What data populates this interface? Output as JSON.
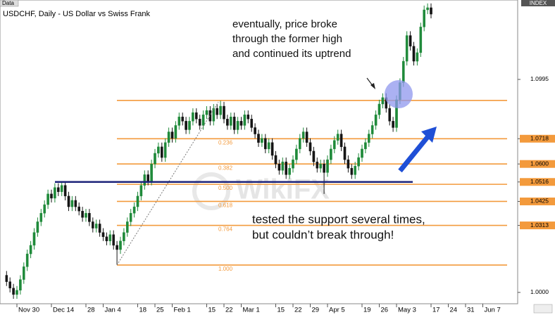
{
  "chart_data": {
    "type": "candlestick",
    "title": "USDCHF, Daily - US Dollar vs Swiss Frank",
    "data_tab": "Data",
    "index_tag": "INDEX",
    "categories": [
      null,
      null,
      null,
      "Nov 30",
      null,
      null,
      null,
      null,
      null,
      null,
      null,
      null,
      null,
      "Dec 14",
      null,
      null,
      null,
      null,
      null,
      null,
      null,
      null,
      null,
      "28",
      null,
      null,
      null,
      null,
      "Jan 4",
      null,
      null,
      null,
      null,
      null,
      null,
      null,
      null,
      null,
      "18",
      null,
      null,
      null,
      null,
      "25",
      null,
      null,
      null,
      null,
      "Feb 1",
      null,
      null,
      null,
      null,
      null,
      null,
      null,
      null,
      null,
      "15",
      null,
      null,
      null,
      null,
      "22",
      null,
      null,
      null,
      null,
      "Mar 1",
      null,
      null,
      null,
      null,
      null,
      null,
      null,
      null,
      null,
      "15",
      null,
      null,
      null,
      null,
      "22",
      null,
      null,
      null,
      null,
      "29",
      null,
      null,
      null,
      null,
      "Apr 5",
      null,
      null,
      null,
      null,
      null,
      null,
      null,
      null,
      null,
      "19",
      null,
      null,
      null,
      null,
      "26",
      null,
      null,
      null,
      null,
      "May 3",
      null,
      null,
      null,
      null,
      null,
      null,
      null,
      null,
      null,
      "17",
      null,
      null,
      null,
      null,
      "24",
      null,
      null,
      null,
      null,
      "31",
      null,
      null,
      null,
      null,
      "Jun 7"
    ],
    "open": [
      1.008,
      1.005,
      1.002,
      0.999,
      1.001,
      1.006,
      1.012,
      1.018,
      1.022,
      1.028,
      1.033,
      1.037,
      1.041,
      1.046,
      1.044,
      1.049,
      1.047,
      1.05,
      1.045,
      1.04,
      1.043,
      1.04,
      1.038,
      1.035,
      1.037,
      1.033,
      1.03,
      1.032,
      1.028,
      1.026,
      1.024,
      1.027,
      1.022,
      1.02,
      1.024,
      1.028,
      1.033,
      1.037,
      1.04,
      1.045,
      1.05,
      1.055,
      1.052,
      1.06,
      1.065,
      1.068,
      1.063,
      1.07,
      1.075,
      1.072,
      1.078,
      1.082,
      1.08,
      1.076,
      1.08,
      1.084,
      1.081,
      1.078,
      1.083,
      1.085,
      1.08,
      1.086,
      1.083,
      1.087,
      1.081,
      1.078,
      1.082,
      1.076,
      1.08,
      1.078,
      1.083,
      1.081,
      1.077,
      1.074,
      1.07,
      1.072,
      1.067,
      1.07,
      1.064,
      1.06,
      1.057,
      1.061,
      1.055,
      1.058,
      1.062,
      1.067,
      1.072,
      1.075,
      1.07,
      1.066,
      1.061,
      1.058,
      1.06,
      1.056,
      1.062,
      1.067,
      1.071,
      1.074,
      1.068,
      1.062,
      1.058,
      1.055,
      1.059,
      1.063,
      1.067,
      1.07,
      1.074,
      1.078,
      1.083,
      1.088,
      1.091,
      1.086,
      1.08,
      1.077,
      1.09,
      1.098,
      1.108,
      1.12,
      1.115,
      1.108,
      1.112,
      1.124,
      1.132,
      1.133,
      null,
      null,
      null,
      null,
      null,
      null,
      null,
      null,
      null,
      null,
      null,
      null,
      null,
      null,
      null
    ],
    "high": [
      1.01,
      1.007,
      1.004,
      1.003,
      1.008,
      1.014,
      1.02,
      1.024,
      1.03,
      1.035,
      1.039,
      1.043,
      1.048,
      1.048,
      1.051,
      1.051,
      1.052,
      1.052,
      1.047,
      1.045,
      1.045,
      1.042,
      1.04,
      1.039,
      1.039,
      1.035,
      1.034,
      1.034,
      1.03,
      1.028,
      1.029,
      1.029,
      1.024,
      1.026,
      1.03,
      1.035,
      1.039,
      1.042,
      1.047,
      1.052,
      1.057,
      1.057,
      1.062,
      1.067,
      1.07,
      1.07,
      1.072,
      1.077,
      1.077,
      1.08,
      1.084,
      1.084,
      1.082,
      1.082,
      1.086,
      1.086,
      1.083,
      1.085,
      1.087,
      1.087,
      1.088,
      1.088,
      1.0895,
      1.089,
      1.083,
      1.084,
      1.084,
      1.082,
      1.082,
      1.085,
      1.085,
      1.083,
      1.079,
      1.076,
      1.074,
      1.074,
      1.072,
      1.072,
      1.066,
      1.062,
      1.063,
      1.063,
      1.06,
      1.064,
      1.069,
      1.074,
      1.077,
      1.077,
      1.072,
      1.068,
      1.063,
      1.062,
      1.062,
      1.064,
      1.069,
      1.073,
      1.076,
      1.076,
      1.07,
      1.064,
      1.06,
      1.061,
      1.065,
      1.069,
      1.072,
      1.076,
      1.08,
      1.085,
      1.09,
      1.093,
      1.093,
      1.088,
      1.082,
      1.092,
      1.1,
      1.11,
      1.122,
      1.122,
      1.117,
      1.114,
      1.126,
      1.134,
      1.135,
      1.135,
      null,
      null,
      null,
      null,
      null,
      null,
      null,
      null,
      null,
      null,
      null,
      null,
      null,
      null,
      null
    ],
    "low": [
      1.003,
      1.0,
      0.997,
      0.997,
      0.999,
      1.004,
      1.01,
      1.016,
      1.02,
      1.026,
      1.031,
      1.035,
      1.039,
      1.042,
      1.042,
      1.045,
      1.045,
      1.043,
      1.038,
      1.038,
      1.038,
      1.036,
      1.033,
      1.033,
      1.031,
      1.028,
      1.028,
      1.026,
      1.024,
      1.022,
      1.022,
      1.02,
      1.013,
      1.018,
      1.022,
      1.026,
      1.031,
      1.035,
      1.038,
      1.043,
      1.048,
      1.05,
      1.05,
      1.058,
      1.063,
      1.061,
      1.061,
      1.068,
      1.07,
      1.07,
      1.076,
      1.078,
      1.074,
      1.074,
      1.078,
      1.079,
      1.076,
      1.076,
      1.081,
      1.078,
      1.078,
      1.081,
      1.081,
      1.079,
      1.076,
      1.076,
      1.074,
      1.074,
      1.076,
      1.076,
      1.079,
      1.075,
      1.072,
      1.068,
      1.068,
      1.065,
      1.065,
      1.062,
      1.058,
      1.055,
      1.055,
      1.053,
      1.053,
      1.056,
      1.06,
      1.065,
      1.07,
      1.068,
      1.064,
      1.059,
      1.056,
      1.056,
      1.046,
      1.054,
      1.06,
      1.065,
      1.069,
      1.066,
      1.06,
      1.056,
      1.053,
      1.053,
      1.057,
      1.061,
      1.065,
      1.068,
      1.072,
      1.076,
      1.081,
      1.086,
      1.084,
      1.078,
      1.075,
      1.075,
      1.088,
      1.096,
      1.106,
      1.113,
      1.106,
      1.106,
      1.11,
      1.122,
      1.13,
      1.128,
      null,
      null,
      null,
      null,
      null,
      null,
      null,
      null,
      null,
      null,
      null,
      null,
      null,
      null,
      null
    ],
    "close": [
      1.005,
      1.002,
      0.999,
      1.001,
      1.006,
      1.012,
      1.018,
      1.022,
      1.028,
      1.033,
      1.037,
      1.041,
      1.046,
      1.044,
      1.049,
      1.047,
      1.05,
      1.045,
      1.04,
      1.043,
      1.04,
      1.038,
      1.035,
      1.037,
      1.033,
      1.03,
      1.032,
      1.028,
      1.026,
      1.024,
      1.027,
      1.022,
      1.02,
      1.024,
      1.028,
      1.033,
      1.037,
      1.04,
      1.045,
      1.05,
      1.055,
      1.052,
      1.06,
      1.065,
      1.068,
      1.063,
      1.07,
      1.075,
      1.072,
      1.078,
      1.082,
      1.08,
      1.076,
      1.08,
      1.084,
      1.081,
      1.078,
      1.083,
      1.085,
      1.08,
      1.086,
      1.083,
      1.087,
      1.081,
      1.078,
      1.082,
      1.076,
      1.08,
      1.078,
      1.083,
      1.081,
      1.077,
      1.074,
      1.07,
      1.072,
      1.067,
      1.07,
      1.064,
      1.06,
      1.057,
      1.061,
      1.055,
      1.058,
      1.062,
      1.067,
      1.072,
      1.075,
      1.07,
      1.066,
      1.061,
      1.058,
      1.06,
      1.056,
      1.062,
      1.067,
      1.071,
      1.074,
      1.068,
      1.062,
      1.058,
      1.055,
      1.059,
      1.063,
      1.067,
      1.07,
      1.074,
      1.078,
      1.083,
      1.088,
      1.091,
      1.086,
      1.08,
      1.077,
      1.09,
      1.098,
      1.108,
      1.12,
      1.115,
      1.108,
      1.112,
      1.124,
      1.132,
      1.133,
      1.13,
      null,
      null,
      null,
      null,
      null,
      null,
      null,
      null,
      null,
      null,
      null,
      null,
      null,
      null,
      null
    ],
    "up_color": "#1f8a3a",
    "down_color": "#151515",
    "ylim": [
      0.9947,
      1.1366
    ],
    "yticks": [
      1.0995,
      1.0718,
      {
        "value": 1.06,
        "label": "1.0600"
      },
      1.0516,
      1.0425,
      1.0313,
      {
        "value": 1,
        "label": "1.0000"
      }
    ],
    "fib_color": "#f39a3c",
    "fib_levels": [
      {
        "price": 1.0897
      },
      {
        "price": 1.0718,
        "label": "0.236"
      },
      {
        "price": 1.06,
        "label": "0.382"
      },
      {
        "price": 1.0505,
        "label": "0.500"
      },
      {
        "price": 1.0425,
        "label": "0.618"
      },
      {
        "price": 1.0313,
        "label": "0.764"
      },
      {
        "price": 1.0128,
        "label": "1.000"
      }
    ],
    "support": 1.0516,
    "support_color": "#1c237a",
    "annotations": [
      {
        "lines": [
          "eventually, price broke",
          "through the former high",
          "and continued its uptrend"
        ]
      },
      {
        "lines": [
          "tested the support several times,",
          "but couldn’t break through!"
        ]
      }
    ],
    "watermark": "WikiFX"
  }
}
